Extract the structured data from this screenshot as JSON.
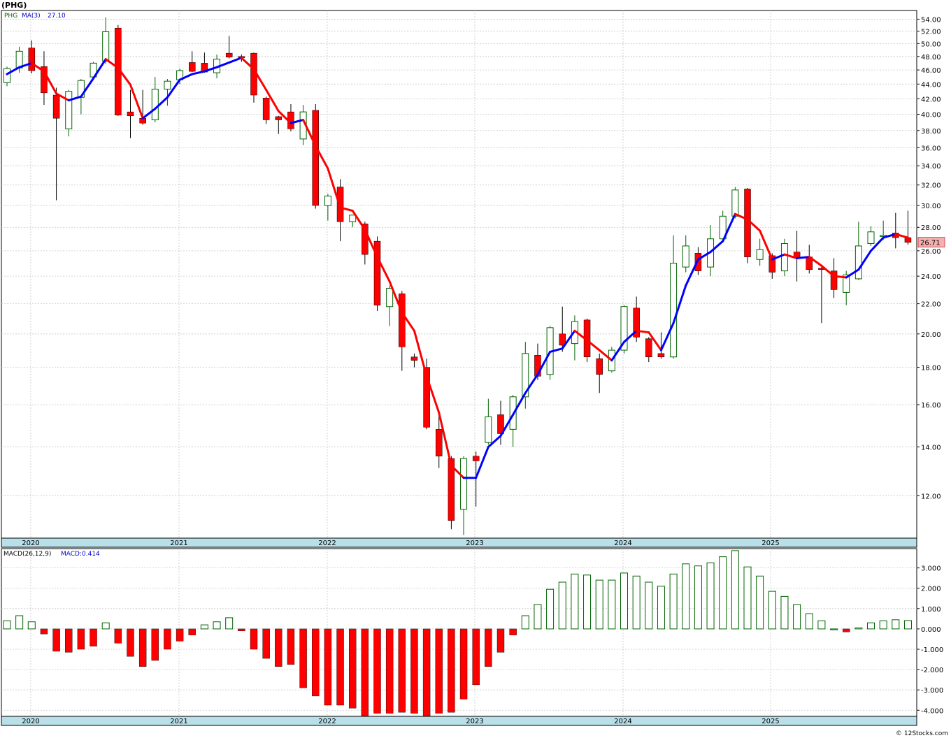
{
  "title": "(PHG)",
  "watermark": "© 12Stocks.com",
  "colors": {
    "up": "#006400",
    "down": "#ff0000",
    "ma_up": "#0000ff",
    "ma_down": "#ff0000",
    "axis_band": "#b9dfe8",
    "grid": "#c8c8c8",
    "last_price_box": "#f4b0b0"
  },
  "chart_data": [
    {
      "type": "candlestick",
      "name": "price-panel",
      "legend": {
        "symbol": "PHG",
        "ma_label": "MA(3)",
        "ma_value": "27.10"
      },
      "scale": "log",
      "ylim": [
        10.5,
        55.5
      ],
      "y_ticks": [
        54,
        52,
        50,
        48,
        46,
        44,
        42,
        40,
        38,
        36,
        34,
        32,
        30,
        28,
        26,
        24,
        22,
        20,
        18,
        16,
        14,
        12
      ],
      "y_tick_labels": [
        "54.00",
        "52.00",
        "50.00",
        "48.00",
        "46.00",
        "44.00",
        "42.00",
        "40.00",
        "38.00",
        "36.00",
        "34.00",
        "32.00",
        "30.00",
        "28.00",
        "26.00",
        "24.00",
        "22.00",
        "20.00",
        "18.00",
        "16.00",
        "14.00",
        "12.00"
      ],
      "last_price": "26.71",
      "years": [
        "2020",
        "2021",
        "2022",
        "2023",
        "2024",
        "2025"
      ],
      "candles": [
        {
          "o": 44.2,
          "h": 46.5,
          "l": 43.7,
          "c": 46.2
        },
        {
          "o": 46.3,
          "h": 49.5,
          "l": 45.6,
          "c": 48.8
        },
        {
          "o": 49.3,
          "h": 50.5,
          "l": 45.5,
          "c": 45.9
        },
        {
          "o": 46.5,
          "h": 48.8,
          "l": 41.2,
          "c": 42.8
        },
        {
          "o": 42.5,
          "h": 43.5,
          "l": 30.5,
          "c": 39.5
        },
        {
          "o": 38.2,
          "h": 43.2,
          "l": 37.3,
          "c": 43.0
        },
        {
          "o": 42.2,
          "h": 44.7,
          "l": 40.0,
          "c": 44.5
        },
        {
          "o": 45.0,
          "h": 47.2,
          "l": 44.7,
          "c": 47.0
        },
        {
          "o": 47.3,
          "h": 54.3,
          "l": 46.9,
          "c": 51.9
        },
        {
          "o": 52.5,
          "h": 53.0,
          "l": 39.8,
          "c": 39.9
        },
        {
          "o": 40.3,
          "h": 43.2,
          "l": 37.1,
          "c": 39.8
        },
        {
          "o": 39.5,
          "h": 43.2,
          "l": 38.7,
          "c": 38.9
        },
        {
          "o": 39.3,
          "h": 45.0,
          "l": 39.0,
          "c": 43.3
        },
        {
          "o": 43.3,
          "h": 44.7,
          "l": 41.1,
          "c": 44.4
        },
        {
          "o": 44.6,
          "h": 46.2,
          "l": 44.0,
          "c": 45.9
        },
        {
          "o": 47.1,
          "h": 48.8,
          "l": 45.7,
          "c": 45.8
        },
        {
          "o": 47.0,
          "h": 48.6,
          "l": 45.6,
          "c": 45.7
        },
        {
          "o": 45.6,
          "h": 48.3,
          "l": 44.8,
          "c": 47.6
        },
        {
          "o": 48.5,
          "h": 51.2,
          "l": 47.7,
          "c": 47.9
        },
        {
          "o": 48.0,
          "h": 48.3,
          "l": 47.2,
          "c": 47.8
        },
        {
          "o": 48.5,
          "h": 48.6,
          "l": 41.5,
          "c": 42.5
        },
        {
          "o": 42.1,
          "h": 42.3,
          "l": 38.8,
          "c": 39.3
        },
        {
          "o": 39.7,
          "h": 39.8,
          "l": 37.6,
          "c": 39.3
        },
        {
          "o": 40.3,
          "h": 41.3,
          "l": 37.9,
          "c": 38.2
        },
        {
          "o": 37.0,
          "h": 41.2,
          "l": 36.3,
          "c": 40.3
        },
        {
          "o": 40.5,
          "h": 41.3,
          "l": 29.7,
          "c": 30.0
        },
        {
          "o": 30.0,
          "h": 31.1,
          "l": 28.6,
          "c": 30.9
        },
        {
          "o": 31.8,
          "h": 32.6,
          "l": 26.8,
          "c": 28.5
        },
        {
          "o": 28.5,
          "h": 29.1,
          "l": 28.0,
          "c": 29.1
        },
        {
          "o": 28.3,
          "h": 28.5,
          "l": 24.9,
          "c": 25.7
        },
        {
          "o": 26.8,
          "h": 27.2,
          "l": 21.5,
          "c": 21.9
        },
        {
          "o": 21.8,
          "h": 23.3,
          "l": 20.5,
          "c": 23.1
        },
        {
          "o": 22.7,
          "h": 22.9,
          "l": 17.8,
          "c": 19.2
        },
        {
          "o": 18.6,
          "h": 18.8,
          "l": 18.0,
          "c": 18.4
        },
        {
          "o": 18.0,
          "h": 18.5,
          "l": 14.8,
          "c": 14.9
        },
        {
          "o": 14.8,
          "h": 15.7,
          "l": 13.1,
          "c": 13.6
        },
        {
          "o": 13.5,
          "h": 13.6,
          "l": 10.8,
          "c": 11.1
        },
        {
          "o": 11.5,
          "h": 13.6,
          "l": 10.6,
          "c": 13.5
        },
        {
          "o": 13.6,
          "h": 13.8,
          "l": 11.6,
          "c": 13.4
        },
        {
          "o": 14.2,
          "h": 16.3,
          "l": 14.1,
          "c": 15.4
        },
        {
          "o": 15.5,
          "h": 16.2,
          "l": 14.1,
          "c": 14.6
        },
        {
          "o": 14.8,
          "h": 16.5,
          "l": 14.0,
          "c": 16.4
        },
        {
          "o": 16.4,
          "h": 19.5,
          "l": 15.8,
          "c": 18.8
        },
        {
          "o": 18.7,
          "h": 19.4,
          "l": 17.3,
          "c": 17.5
        },
        {
          "o": 17.6,
          "h": 20.5,
          "l": 17.3,
          "c": 20.4
        },
        {
          "o": 20.0,
          "h": 21.8,
          "l": 18.9,
          "c": 19.3
        },
        {
          "o": 19.4,
          "h": 21.2,
          "l": 18.4,
          "c": 20.8
        },
        {
          "o": 20.9,
          "h": 21.0,
          "l": 18.3,
          "c": 18.6
        },
        {
          "o": 18.5,
          "h": 18.8,
          "l": 16.6,
          "c": 17.6
        },
        {
          "o": 17.8,
          "h": 19.2,
          "l": 17.7,
          "c": 19.0
        },
        {
          "o": 19.0,
          "h": 21.9,
          "l": 18.8,
          "c": 21.8
        },
        {
          "o": 21.7,
          "h": 22.5,
          "l": 19.5,
          "c": 19.8
        },
        {
          "o": 19.7,
          "h": 19.8,
          "l": 18.3,
          "c": 18.6
        },
        {
          "o": 18.8,
          "h": 20.1,
          "l": 18.5,
          "c": 18.6
        },
        {
          "o": 18.6,
          "h": 27.3,
          "l": 18.5,
          "c": 25.0
        },
        {
          "o": 24.7,
          "h": 27.3,
          "l": 24.3,
          "c": 26.4
        },
        {
          "o": 25.8,
          "h": 26.3,
          "l": 24.1,
          "c": 24.4
        },
        {
          "o": 24.7,
          "h": 28.2,
          "l": 24.0,
          "c": 27.0
        },
        {
          "o": 27.0,
          "h": 29.5,
          "l": 26.8,
          "c": 29.0
        },
        {
          "o": 29.0,
          "h": 31.8,
          "l": 28.8,
          "c": 31.5
        },
        {
          "o": 31.6,
          "h": 31.7,
          "l": 25.0,
          "c": 25.5
        },
        {
          "o": 25.3,
          "h": 27.0,
          "l": 24.8,
          "c": 26.1
        },
        {
          "o": 25.6,
          "h": 25.8,
          "l": 23.8,
          "c": 24.3
        },
        {
          "o": 24.4,
          "h": 27.0,
          "l": 24.0,
          "c": 26.6
        },
        {
          "o": 25.9,
          "h": 27.7,
          "l": 23.6,
          "c": 25.4
        },
        {
          "o": 25.5,
          "h": 26.5,
          "l": 24.2,
          "c": 24.5
        },
        {
          "o": 24.6,
          "h": 24.7,
          "l": 20.7,
          "c": 24.5
        },
        {
          "o": 24.4,
          "h": 25.4,
          "l": 22.4,
          "c": 23.0
        },
        {
          "o": 22.8,
          "h": 24.4,
          "l": 21.9,
          "c": 24.1
        },
        {
          "o": 23.8,
          "h": 28.5,
          "l": 23.7,
          "c": 26.4
        },
        {
          "o": 26.6,
          "h": 28.1,
          "l": 26.4,
          "c": 27.6
        },
        {
          "o": 27.2,
          "h": 28.6,
          "l": 26.9,
          "c": 27.3
        },
        {
          "o": 27.5,
          "h": 29.3,
          "l": 26.2,
          "c": 27.1
        },
        {
          "o": 27.1,
          "h": 29.5,
          "l": 26.5,
          "c": 26.7
        }
      ],
      "ma3": [
        45.4,
        46.4,
        47.0,
        45.8,
        42.7,
        41.8,
        42.3,
        44.8,
        47.6,
        46.3,
        43.9,
        39.5,
        40.7,
        42.2,
        44.6,
        45.4,
        45.8,
        46.4,
        47.1,
        47.8,
        46.1,
        43.2,
        40.4,
        38.9,
        39.3,
        36.2,
        33.7,
        29.8,
        29.5,
        27.8,
        25.5,
        23.6,
        21.4,
        20.2,
        17.5,
        15.6,
        13.2,
        12.7,
        12.7,
        14.0,
        14.5,
        15.5,
        16.6,
        17.6,
        18.9,
        19.1,
        20.2,
        19.6,
        19.0,
        18.4,
        19.5,
        20.2,
        20.1,
        19.0,
        20.7,
        23.3,
        25.3,
        25.9,
        26.8,
        29.2,
        28.7,
        27.7,
        25.3,
        25.7,
        25.4,
        25.5,
        24.8,
        24.0,
        23.9,
        24.5,
        26.0,
        27.1,
        27.4,
        27.1
      ]
    },
    {
      "type": "bar",
      "name": "macd-panel",
      "legend": {
        "label": "MACD(26,12,9)",
        "value_label": "MACD:0.414"
      },
      "ylim": [
        -4.3,
        3.95
      ],
      "y_ticks": [
        3,
        2,
        1,
        0,
        -1,
        -2,
        -3,
        -4
      ],
      "y_tick_labels": [
        "3.000",
        "2.000",
        "1.000",
        "0.000",
        "-1.000",
        "-2.000",
        "-3.000",
        "-4.000"
      ],
      "values": [
        0.4,
        0.65,
        0.35,
        -0.25,
        -1.1,
        -1.15,
        -1.0,
        -0.85,
        0.3,
        -0.7,
        -1.35,
        -1.85,
        -1.55,
        -1.0,
        -0.6,
        -0.3,
        0.2,
        0.35,
        0.55,
        -0.1,
        -1.0,
        -1.45,
        -1.85,
        -1.75,
        -2.9,
        -3.3,
        -3.75,
        -3.75,
        -3.9,
        -4.35,
        -4.15,
        -4.15,
        -4.1,
        -4.15,
        -4.3,
        -4.15,
        -4.1,
        -3.45,
        -2.75,
        -1.85,
        -1.15,
        -0.3,
        0.65,
        1.2,
        1.95,
        2.3,
        2.7,
        2.65,
        2.4,
        2.4,
        2.75,
        2.6,
        2.3,
        2.1,
        2.7,
        3.2,
        3.1,
        3.25,
        3.55,
        3.85,
        3.05,
        2.6,
        1.85,
        1.6,
        1.2,
        0.75,
        0.4,
        0.0,
        -0.15,
        0.05,
        0.3,
        0.4,
        0.45,
        0.41
      ]
    }
  ]
}
